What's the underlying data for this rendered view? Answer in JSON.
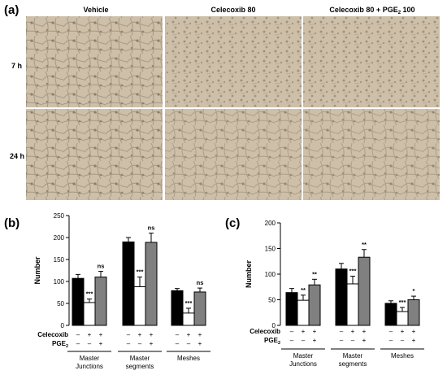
{
  "panel_a": {
    "label": "(a)",
    "columns": [
      {
        "label": "Vehicle"
      },
      {
        "label": "Celecoxib 80"
      },
      {
        "label_main": "Celecoxib 80 + PGE",
        "label_sub": "2",
        "label_tail": " 100"
      }
    ],
    "rows": [
      {
        "label": "7 h"
      },
      {
        "label": "24 h"
      }
    ],
    "micrograph_color": "#cdbfa8"
  },
  "chart_data": [
    {
      "panel": "(b)",
      "type": "bar",
      "ylabel": "Number",
      "ylim": [
        0,
        250
      ],
      "yticks": [
        0,
        50,
        100,
        150,
        200,
        250
      ],
      "grid": false,
      "categories": [
        {
          "line1": "Master",
          "line2": "Junctions"
        },
        {
          "line1": "Master",
          "line2": "segments"
        },
        {
          "line1": "Meshes",
          "line2": ""
        }
      ],
      "series": [
        {
          "fill": "#000000",
          "values": [
            107,
            190,
            79
          ],
          "errors": [
            9,
            10,
            5
          ],
          "marks": [
            "",
            "",
            ""
          ],
          "celecoxib": "–",
          "pge2": "–"
        },
        {
          "fill": "#ffffff",
          "values": [
            52,
            88,
            28
          ],
          "errors": [
            8,
            22,
            11
          ],
          "marks": [
            "***",
            "***",
            "***"
          ],
          "celecoxib": "+",
          "pge2": "–"
        },
        {
          "fill": "#808080",
          "values": [
            110,
            189,
            76
          ],
          "errors": [
            13,
            21,
            9
          ],
          "marks": [
            "ns",
            "ns",
            "ns"
          ],
          "celecoxib": "+",
          "pge2": "+"
        }
      ],
      "treatment_labels": {
        "celecoxib": "Celecoxib",
        "pge_main": "PGE",
        "pge_sub": "2"
      }
    },
    {
      "panel": "(c)",
      "type": "bar",
      "ylabel": "Number",
      "ylim": [
        0,
        200
      ],
      "yticks": [
        0,
        50,
        100,
        150,
        200
      ],
      "grid": false,
      "categories": [
        {
          "line1": "Master",
          "line2": "Junctions"
        },
        {
          "line1": "Master",
          "line2": "segments"
        },
        {
          "line1": "Meshes",
          "line2": ""
        }
      ],
      "series": [
        {
          "fill": "#000000",
          "values": [
            64,
            110,
            43
          ],
          "errors": [
            8,
            11,
            5
          ],
          "marks": [
            "",
            "",
            ""
          ],
          "celecoxib": "–",
          "pge2": "–"
        },
        {
          "fill": "#ffffff",
          "values": [
            49,
            81,
            27
          ],
          "errors": [
            10,
            15,
            8
          ],
          "marks": [
            "**",
            "***",
            "***"
          ],
          "celecoxib": "+",
          "pge2": "–"
        },
        {
          "fill": "#808080",
          "values": [
            79,
            133,
            50
          ],
          "errors": [
            11,
            15,
            7
          ],
          "marks": [
            "**",
            "**",
            "*"
          ],
          "celecoxib": "+",
          "pge2": "+"
        }
      ],
      "treatment_labels": {
        "celecoxib": "Celecoxib",
        "pge_main": "PGE",
        "pge_sub": "2"
      }
    }
  ]
}
